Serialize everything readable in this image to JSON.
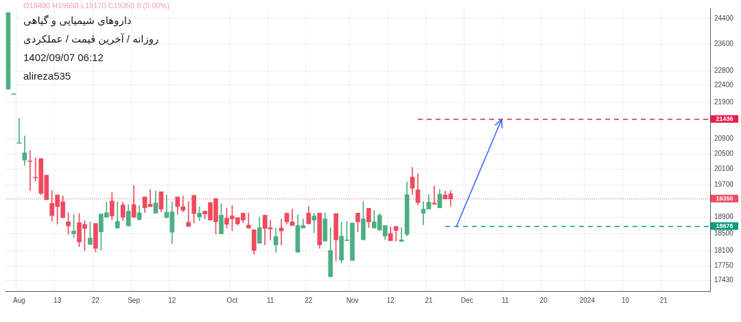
{
  "chart_data": {
    "type": "candlestick",
    "title": "داروهای شیمیایی و گیاهی",
    "subtitle": "روزانه / آخرین قیمت / عملکردی",
    "annotations": [
      "O19480 H19550 L19170 C19350 0 (0.00%)",
      "1402/09/07 06:12",
      "alireza535"
    ],
    "categories": [
      null,
      null,
      "Aug",
      null,
      null,
      null,
      null,
      null,
      null,
      "13",
      null,
      null,
      null,
      null,
      null,
      null,
      "22",
      null,
      null,
      null,
      null,
      null,
      null,
      "Sep",
      null,
      null,
      null,
      null,
      null,
      null,
      "12",
      null,
      null,
      null,
      null,
      null,
      null,
      null,
      null,
      null,
      null,
      "Oct",
      null,
      null,
      null,
      null,
      null,
      null,
      "11",
      null,
      null,
      null,
      null,
      null,
      null,
      "22",
      null,
      null,
      null,
      null,
      null,
      null,
      null,
      "Nov",
      null,
      null,
      null,
      null,
      null,
      null,
      "12",
      null,
      null,
      null,
      null,
      null,
      null,
      "21",
      null,
      null,
      null,
      null,
      null,
      null,
      "Dec",
      null,
      null,
      null,
      null,
      null,
      null,
      "11",
      null,
      null,
      null,
      null,
      null,
      null,
      "20",
      null,
      null,
      null,
      null,
      null,
      null,
      null,
      "2024",
      null,
      null,
      null,
      null,
      null,
      null,
      "10",
      null,
      null,
      null,
      null,
      null,
      null,
      "21",
      null,
      null,
      null,
      null,
      null,
      null,
      null,
      null
    ],
    "ohlc": [
      [
        22280,
        24580,
        22280,
        24580
      ],
      [
        22130,
        22130,
        22130,
        22130
      ],
      [
        20780,
        21460,
        20780,
        20780
      ],
      [
        20340,
        20980,
        20200,
        20530
      ],
      [
        20310,
        20590,
        19560,
        20300
      ],
      [
        19890,
        20400,
        19800,
        19880
      ],
      [
        20380,
        20380,
        19450,
        19490
      ],
      [
        19950,
        19950,
        19330,
        19330
      ],
      [
        19240,
        19560,
        18800,
        18940
      ],
      [
        19450,
        19450,
        18730,
        19160
      ],
      [
        19280,
        19430,
        18890,
        18890
      ],
      [
        18790,
        19010,
        18490,
        18690
      ],
      [
        18500,
        18970,
        18410,
        18570
      ],
      [
        18770,
        18990,
        18200,
        18310
      ],
      [
        18730,
        18820,
        18110,
        18630
      ],
      [
        18250,
        18780,
        18250,
        18400
      ],
      [
        18750,
        18750,
        18080,
        18160
      ],
      [
        18550,
        18980,
        18120,
        18980
      ],
      [
        18900,
        19270,
        18900,
        19010
      ],
      [
        19300,
        19510,
        18840,
        18930
      ],
      [
        18640,
        19280,
        18640,
        18800
      ],
      [
        19200,
        19270,
        18820,
        18900
      ],
      [
        18690,
        19210,
        18690,
        19050
      ],
      [
        19210,
        19690,
        18900,
        18900
      ],
      [
        18840,
        19190,
        18840,
        19010
      ],
      [
        19400,
        19400,
        19010,
        19130
      ],
      [
        19220,
        19590,
        19160,
        19160
      ],
      [
        19000,
        19560,
        19000,
        19250
      ],
      [
        19530,
        19530,
        19030,
        19100
      ],
      [
        18890,
        19450,
        18890,
        19020
      ],
      [
        18540,
        19280,
        18270,
        19030
      ],
      [
        19400,
        19400,
        18970,
        19160
      ],
      [
        19160,
        19420,
        19030,
        19070
      ],
      [
        18780,
        19280,
        18680,
        18680
      ],
      [
        19440,
        19440,
        18760,
        18990
      ],
      [
        18910,
        19160,
        18820,
        19000
      ],
      [
        19050,
        19050,
        18860,
        18980
      ],
      [
        19260,
        19260,
        18830,
        18830
      ],
      [
        19360,
        19360,
        18500,
        18790
      ],
      [
        18500,
        19240,
        18500,
        18950
      ],
      [
        18880,
        19130,
        18640,
        18730
      ],
      [
        18930,
        19190,
        18570,
        18860
      ],
      [
        18890,
        18890,
        18710,
        18740
      ],
      [
        19000,
        19000,
        18760,
        18830
      ],
      [
        18710,
        19000,
        18630,
        18640
      ],
      [
        18600,
        18600,
        18020,
        18110
      ],
      [
        18280,
        18910,
        18280,
        18650
      ],
      [
        18950,
        18950,
        18240,
        18630
      ],
      [
        18650,
        18830,
        18350,
        18620
      ],
      [
        18240,
        18640,
        18070,
        18440
      ],
      [
        18640,
        18860,
        18240,
        18570
      ],
      [
        19000,
        19000,
        18730,
        18790
      ],
      [
        18790,
        19100,
        18700,
        18700
      ],
      [
        18070,
        18960,
        18070,
        18700
      ],
      [
        18640,
        18860,
        18640,
        18700
      ],
      [
        19000,
        19160,
        18740,
        18740
      ],
      [
        18830,
        19000,
        18530,
        18930
      ],
      [
        19000,
        19000,
        18160,
        18240
      ],
      [
        18330,
        19010,
        18330,
        18860
      ],
      [
        17510,
        18650,
        17510,
        18110
      ],
      [
        18990,
        18990,
        17870,
        18360
      ],
      [
        17890,
        18780,
        17820,
        18450
      ],
      [
        18340,
        18800,
        18340,
        18340
      ],
      [
        17880,
        18760,
        17880,
        18760
      ],
      [
        19000,
        19000,
        18550,
        18790
      ],
      [
        18360,
        19290,
        18360,
        18860
      ],
      [
        19120,
        19120,
        18650,
        18790
      ],
      [
        18640,
        19070,
        18640,
        18790
      ],
      [
        18590,
        18990,
        18590,
        18950
      ],
      [
        18450,
        18700,
        18360,
        18700
      ],
      [
        18510,
        18670,
        18340,
        18340
      ],
      [
        18680,
        18680,
        18330,
        18580
      ],
      [
        18320,
        18650,
        18320,
        18360
      ],
      [
        18490,
        19780,
        18450,
        19460
      ],
      [
        19900,
        20150,
        19460,
        19620
      ],
      [
        19580,
        19990,
        19200,
        19260
      ],
      [
        19000,
        19290,
        18720,
        19100
      ],
      [
        19100,
        19460,
        19100,
        19270
      ],
      [
        19250,
        19670,
        19220,
        19220
      ],
      [
        19130,
        19590,
        19130,
        19470
      ],
      [
        19450,
        19550,
        19350,
        19350
      ],
      [
        19480,
        19550,
        19170,
        19350
      ],
      null,
      null,
      null,
      null,
      null,
      null,
      null,
      null,
      null,
      null,
      null,
      null,
      null,
      null,
      null,
      null,
      null,
      null,
      null,
      null,
      null,
      null,
      null,
      null,
      null,
      null,
      null,
      null,
      null,
      null,
      null,
      null,
      null,
      null,
      null,
      null,
      null,
      null,
      null,
      null,
      null,
      null,
      null,
      null,
      null,
      null,
      null
    ],
    "colors": [
      "#4caf83",
      "#4caf83",
      "#4caf83",
      "#4caf83",
      "#ef4a5f",
      "#ef4a5f",
      "#ef4a5f",
      "#ef4a5f",
      "#ef4a5f",
      "#ef4a5f",
      "#ef4a5f",
      "#ef4a5f",
      "#4caf83",
      "#ef4a5f",
      "#ef4a5f",
      "#4caf83",
      "#ef4a5f",
      "#4caf83",
      "#4caf83",
      "#ef4a5f",
      "#4caf83",
      "#ef4a5f",
      "#4caf83",
      "#ef4a5f",
      "#4caf83",
      "#ef4a5f",
      "#ef4a5f",
      "#4caf83",
      "#ef4a5f",
      "#4caf83",
      "#4caf83",
      "#ef4a5f",
      "#ef4a5f",
      "#ef4a5f",
      "#ef4a5f",
      "#4caf83",
      "#ef4a5f",
      "#ef4a5f",
      "#ef4a5f",
      "#4caf83",
      "#ef4a5f",
      "#ef4a5f",
      "#ef4a5f",
      "#ef4a5f",
      "#ef4a5f",
      "#ef4a5f",
      "#4caf83",
      "#ef4a5f",
      "#ef4a5f",
      "#4caf83",
      "#ef4a5f",
      "#ef4a5f",
      "#ef4a5f",
      "#4caf83",
      "#4caf83",
      "#ef4a5f",
      "#4caf83",
      "#ef4a5f",
      "#4caf83",
      "#4caf83",
      "#ef4a5f",
      "#4caf83",
      "#4caf83",
      "#4caf83",
      "#ef4a5f",
      "#4caf83",
      "#ef4a5f",
      "#4caf83",
      "#4caf83",
      "#4caf83",
      "#ef4a5f",
      "#ef4a5f",
      "#4caf83",
      "#4caf83",
      "#ef4a5f",
      "#ef4a5f",
      "#4caf83",
      "#4caf83",
      "#ef4a5f",
      "#4caf83",
      "#ef4a5f",
      "#ef4a5f",
      null,
      null,
      null,
      null,
      null,
      null,
      null,
      null,
      null,
      null,
      null,
      null,
      null,
      null,
      null,
      null,
      null,
      null,
      null,
      null,
      null,
      null,
      null,
      null,
      null,
      null,
      null,
      null,
      null,
      null,
      null,
      null,
      null,
      null,
      null,
      null,
      null,
      null,
      null,
      null,
      null,
      null,
      null,
      null,
      null,
      null,
      null
    ],
    "ylim": [
      17190,
      24720
    ],
    "yticks": [
      17430,
      17750,
      18100,
      18500,
      18900,
      19700,
      20100,
      20500,
      20900,
      21900,
      22400,
      22800,
      23600,
      24400
    ],
    "log": "y",
    "grid": true,
    "ref_lines": [
      {
        "axis": "y",
        "value": 21436,
        "label": "21436",
        "color": "#e91e4f",
        "line_style": "dashed"
      },
      {
        "axis": "y",
        "value": 19350,
        "label": "19350",
        "color": "#ef4a5f",
        "line_style": "dotted"
      },
      {
        "axis": "y",
        "value": 18678,
        "label": "18678",
        "color": "#089981",
        "line_style": "dashed"
      }
    ]
  }
}
